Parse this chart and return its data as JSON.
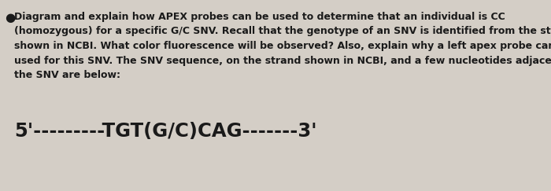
{
  "background_color": "#d4cec6",
  "bullet_symbol": "●",
  "lines": [
    "Diagram and explain how APEX probes can be used to determine that an individual is CC",
    "(homozygous) for a specific G/C SNV. Recall that the genotype of an SNV is identified from the strand",
    "shown in NCBI. What color fluorescence will be observed? Also, explain why a left apex probe cannot be",
    "used for this SNV. The SNV sequence, on the strand shown in NCBI, and a few nucleotides adjacent to",
    "the SNV are below:"
  ],
  "sequence_text": "5'---------TGT(G/C)CAG-------3'",
  "paragraph_fontsize": 9.0,
  "sequence_fontsize": 17.5,
  "text_color": "#1a1a1a",
  "font_family": "DejaVu Sans"
}
